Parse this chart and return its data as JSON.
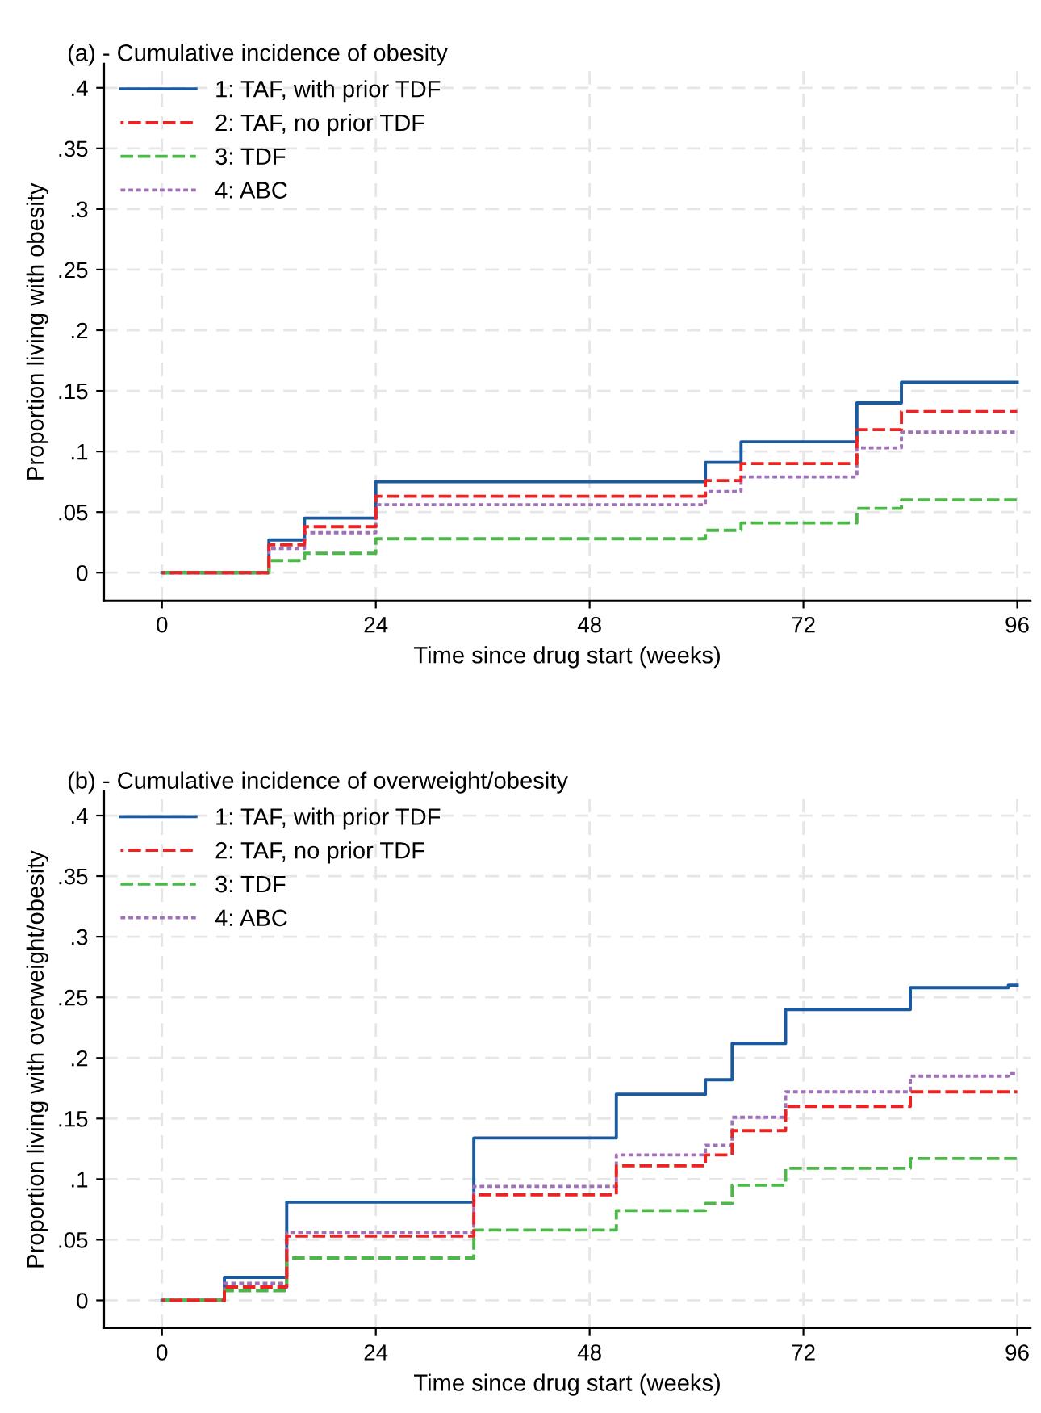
{
  "chart_data": [
    {
      "type": "step",
      "title": "(a) - Cumulative incidence of obesity",
      "xlabel": "Time since drug start (weeks)",
      "ylabel": "Proportion living with obesity",
      "xlim": [
        -6.5,
        97.5
      ],
      "ylim": [
        -0.023,
        0.42
      ],
      "xticks": [
        0,
        24,
        48,
        72,
        96
      ],
      "yticks": [
        0,
        {
          "value": 0.05,
          "label": ".05"
        },
        {
          "value": 0.1,
          "label": ".1"
        },
        {
          "value": 0.15,
          "label": ".15"
        },
        {
          "value": 0.2,
          "label": ".2"
        },
        {
          "value": 0.25,
          "label": ".25"
        },
        {
          "value": 0.3,
          "label": ".3"
        },
        {
          "value": 0.35,
          "label": ".35"
        },
        {
          "value": 0.4,
          "label": ".4"
        }
      ],
      "grid": true,
      "legend": "top left",
      "series": [
        {
          "name": "1: TAF, with prior TDF",
          "color": "#1a5aa0",
          "line_style": "solid",
          "x": [
            0,
            12,
            16,
            24,
            61,
            65,
            78,
            83,
            96
          ],
          "values": [
            0,
            0.027,
            0.045,
            0.075,
            0.091,
            0.108,
            0.14,
            0.157,
            0.157
          ]
        },
        {
          "name": "2: TAF, no prior TDF",
          "color": "#ee2222",
          "line_style": "dashed",
          "x": [
            0,
            12,
            16,
            24,
            61,
            65,
            78,
            83,
            96
          ],
          "values": [
            0,
            0.023,
            0.038,
            0.063,
            0.076,
            0.09,
            0.118,
            0.133,
            0.133
          ]
        },
        {
          "name": "3: TDF",
          "color": "#4cb848",
          "line_style": "dashed",
          "x": [
            0,
            12,
            16,
            24,
            61,
            65,
            78,
            83,
            96
          ],
          "values": [
            0,
            0.01,
            0.016,
            0.028,
            0.035,
            0.041,
            0.053,
            0.06,
            0.06
          ]
        },
        {
          "name": "4: ABC",
          "color": "#a070b8",
          "line_style": "dotted",
          "x": [
            0,
            12,
            16,
            24,
            61,
            65,
            78,
            83,
            96
          ],
          "values": [
            0,
            0.02,
            0.033,
            0.056,
            0.067,
            0.079,
            0.103,
            0.116,
            0.116
          ]
        }
      ]
    },
    {
      "type": "step",
      "title": "(b) - Cumulative incidence of overweight/obesity",
      "xlabel": "Time since drug start (weeks)",
      "ylabel": "Proportion living with overweight/obesity",
      "xlim": [
        -6.5,
        97.5
      ],
      "ylim": [
        -0.023,
        0.42
      ],
      "xticks": [
        0,
        24,
        48,
        72,
        96
      ],
      "yticks": [
        0,
        {
          "value": 0.05,
          "label": ".05"
        },
        {
          "value": 0.1,
          "label": ".1"
        },
        {
          "value": 0.15,
          "label": ".15"
        },
        {
          "value": 0.2,
          "label": ".2"
        },
        {
          "value": 0.25,
          "label": ".25"
        },
        {
          "value": 0.3,
          "label": ".3"
        },
        {
          "value": 0.35,
          "label": ".35"
        },
        {
          "value": 0.4,
          "label": ".4"
        }
      ],
      "grid": true,
      "legend": "top left",
      "series": [
        {
          "name": "1: TAF, with prior TDF",
          "color": "#1a5aa0",
          "line_style": "solid",
          "x": [
            0,
            7,
            14,
            35,
            51,
            61,
            64,
            70,
            84,
            95,
            96
          ],
          "values": [
            0,
            0.019,
            0.081,
            0.134,
            0.17,
            0.182,
            0.212,
            0.24,
            0.258,
            0.26,
            0.26
          ]
        },
        {
          "name": "2: TAF, no prior TDF",
          "color": "#ee2222",
          "line_style": "dashed",
          "x": [
            0,
            7,
            14,
            35,
            51,
            61,
            64,
            70,
            84,
            95,
            96
          ],
          "values": [
            0,
            0.011,
            0.053,
            0.087,
            0.111,
            0.12,
            0.14,
            0.16,
            0.172,
            0.172,
            0.172
          ]
        },
        {
          "name": "3: TDF",
          "color": "#4cb848",
          "line_style": "dashed",
          "x": [
            0,
            7,
            14,
            35,
            51,
            61,
            64,
            70,
            84,
            95,
            96
          ],
          "values": [
            0,
            0.008,
            0.035,
            0.058,
            0.074,
            0.08,
            0.095,
            0.109,
            0.117,
            0.117,
            0.117
          ]
        },
        {
          "name": "4: ABC",
          "color": "#a070b8",
          "line_style": "dotted",
          "x": [
            0,
            7,
            14,
            35,
            51,
            61,
            64,
            70,
            84,
            95,
            96
          ],
          "values": [
            0,
            0.014,
            0.056,
            0.094,
            0.12,
            0.128,
            0.151,
            0.172,
            0.185,
            0.187,
            0.187
          ]
        }
      ]
    }
  ]
}
